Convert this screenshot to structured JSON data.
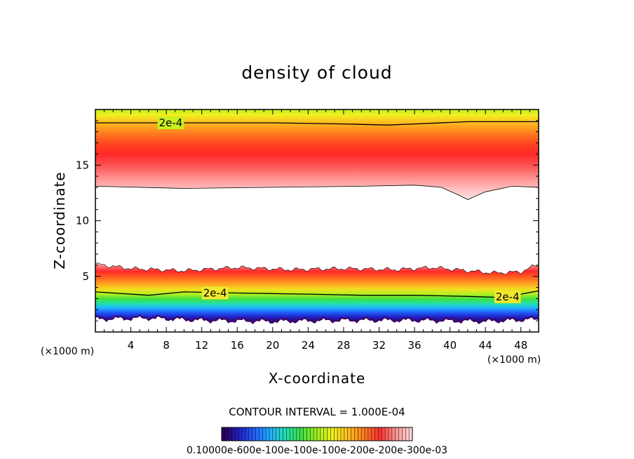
{
  "chart_data": {
    "type": "heatmap",
    "title": "density of cloud",
    "xlabel": "X-coordinate",
    "ylabel": "Z-coordinate",
    "x_unit_label_left": "(×1000 m)",
    "x_unit_label_right": "(×1000 m)",
    "xlim": [
      0,
      50
    ],
    "ylim": [
      0,
      20
    ],
    "x_ticks": [
      4,
      8,
      12,
      16,
      20,
      24,
      28,
      32,
      36,
      40,
      44,
      48
    ],
    "x_tick_labels": [
      "4",
      "8",
      "12",
      "16",
      "20",
      "24",
      "28",
      "32",
      "36",
      "40",
      "44",
      "48"
    ],
    "y_ticks": [
      5,
      10,
      15
    ],
    "y_tick_labels": [
      "5",
      "10",
      "15"
    ],
    "contour_interval_text": "CONTOUR INTERVAL = 1.000E-04",
    "colorbar_labels_text": "0.10000e-600e-100e-100e-100e-200e-200e-300e-03",
    "contour_line_labels": [
      "2e-4",
      "2e-4",
      "2e-4"
    ],
    "upper_layer": {
      "upper_contour_2e-4_z": [
        [
          0,
          18.8
        ],
        [
          10,
          18.8
        ],
        [
          20,
          18.8
        ],
        [
          28,
          18.7
        ],
        [
          33,
          18.6
        ],
        [
          36,
          18.7
        ],
        [
          42,
          18.9
        ],
        [
          50,
          18.9
        ]
      ],
      "lower_edge_z": [
        [
          0,
          13.1
        ],
        [
          10,
          12.9
        ],
        [
          20,
          13.0
        ],
        [
          30,
          13.1
        ],
        [
          36,
          13.2
        ],
        [
          39,
          13.0
        ],
        [
          41,
          12.3
        ],
        [
          42,
          11.9
        ],
        [
          44,
          12.6
        ],
        [
          47,
          13.1
        ],
        [
          50,
          13.0
        ]
      ],
      "peak_z": 15.0,
      "top_z": 20.0
    },
    "lower_layer": {
      "top_edge_z": [
        [
          0,
          6.1
        ],
        [
          4,
          5.7
        ],
        [
          10,
          5.5
        ],
        [
          16,
          5.8
        ],
        [
          22,
          5.6
        ],
        [
          28,
          5.7
        ],
        [
          34,
          5.6
        ],
        [
          38,
          5.8
        ],
        [
          42,
          5.5
        ],
        [
          45,
          5.3
        ],
        [
          48,
          5.4
        ],
        [
          50,
          6.1
        ]
      ],
      "contour_2e-4_z": [
        [
          0,
          3.6
        ],
        [
          6,
          3.3
        ],
        [
          10,
          3.6
        ],
        [
          16,
          3.5
        ],
        [
          24,
          3.4
        ],
        [
          30,
          3.3
        ],
        [
          36,
          3.3
        ],
        [
          42,
          3.2
        ],
        [
          46,
          3.1
        ],
        [
          50,
          3.7
        ]
      ],
      "bottom_edge_z": [
        [
          0,
          1.2
        ],
        [
          6,
          1.3
        ],
        [
          12,
          1.1
        ],
        [
          20,
          1.0
        ],
        [
          28,
          1.1
        ],
        [
          36,
          1.1
        ],
        [
          44,
          1.0
        ],
        [
          50,
          1.2
        ]
      ]
    },
    "colormap": [
      "#2a0055",
      "#2020c0",
      "#2060ff",
      "#20b0ff",
      "#20e0b0",
      "#40e040",
      "#a0f020",
      "#f0f020",
      "#ffc020",
      "#ff8020",
      "#ff3030",
      "#ff9090",
      "#ffd8d8"
    ]
  }
}
